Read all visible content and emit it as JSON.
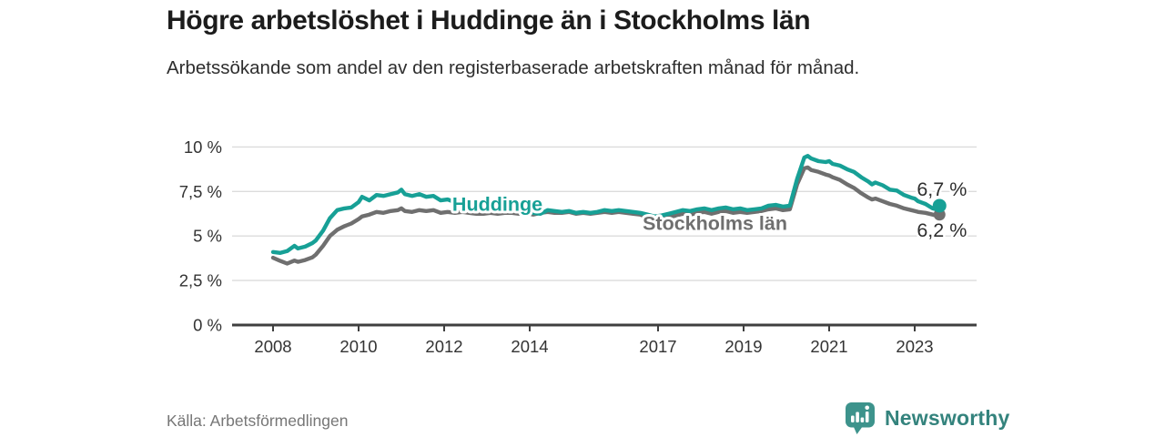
{
  "header": {
    "title": "Högre arbetslöshet i Huddinge än i Stockholms län",
    "subtitle": "Arbetssökande som andel av den registerbaserade arbetskraften månad för månad."
  },
  "footer": {
    "source": "Källa: Arbetsförmedlingen",
    "brand": "Newsworthy",
    "brand_icon": "newsworthy-logo-icon"
  },
  "colors": {
    "huddinge_line": "#17a096",
    "stockholm_line": "#6f6f6f",
    "grid": "#dcdcdc",
    "axis": "#3f3f3f",
    "tick_label": "#333333",
    "value_label": "#2e2e2e",
    "brand_teal": "#3d938c",
    "background": "#ffffff"
  },
  "chart_data": {
    "type": "line",
    "title": "Högre arbetslöshet i Huddinge än i Stockholms län",
    "xlabel": "",
    "ylabel": "Arbetssökande som andel av den registerbaserade arbetskraften",
    "unit": "%",
    "grid": true,
    "legend_position": "inline-labels",
    "xlim": [
      2007.05,
      2024.45
    ],
    "ylim": [
      0,
      10.5
    ],
    "x_ticks": [
      2008,
      2010,
      2012,
      2014,
      2017,
      2019,
      2021,
      2023
    ],
    "y_ticks": [
      {
        "value": 0,
        "label": "0 %"
      },
      {
        "value": 2.5,
        "label": "2,5 %"
      },
      {
        "value": 5,
        "label": "5 %"
      },
      {
        "value": 7.5,
        "label": "7,5 %"
      },
      {
        "value": 10,
        "label": "10 %"
      }
    ],
    "series": [
      {
        "name": "Huddinge",
        "color": "#17a096",
        "label_anchor": [
          2012.19,
          6.42
        ],
        "value_label": {
          "text": "6,7 %",
          "anchor": [
            2023.05,
            7.26
          ]
        },
        "end_value": 6.7,
        "points": [
          [
            2008.0,
            4.1
          ],
          [
            2008.17,
            4.05
          ],
          [
            2008.33,
            4.15
          ],
          [
            2008.5,
            4.45
          ],
          [
            2008.58,
            4.3
          ],
          [
            2008.75,
            4.4
          ],
          [
            2008.92,
            4.6
          ],
          [
            2009.0,
            4.75
          ],
          [
            2009.17,
            5.3
          ],
          [
            2009.33,
            6.0
          ],
          [
            2009.5,
            6.45
          ],
          [
            2009.67,
            6.55
          ],
          [
            2009.83,
            6.6
          ],
          [
            2010.0,
            6.9
          ],
          [
            2010.08,
            7.2
          ],
          [
            2010.25,
            7.0
          ],
          [
            2010.42,
            7.3
          ],
          [
            2010.58,
            7.25
          ],
          [
            2010.75,
            7.35
          ],
          [
            2010.92,
            7.45
          ],
          [
            2011.0,
            7.6
          ],
          [
            2011.08,
            7.35
          ],
          [
            2011.25,
            7.25
          ],
          [
            2011.42,
            7.35
          ],
          [
            2011.58,
            7.2
          ],
          [
            2011.75,
            7.25
          ],
          [
            2011.92,
            7.0
          ],
          [
            2012.08,
            7.05
          ],
          [
            2012.25,
            6.9
          ],
          [
            2012.42,
            6.95
          ],
          [
            2012.58,
            6.85
          ],
          [
            2012.75,
            6.8
          ],
          [
            2012.92,
            6.7
          ],
          [
            2013.08,
            6.6
          ],
          [
            2013.25,
            6.55
          ],
          [
            2013.42,
            6.5
          ],
          [
            2013.58,
            6.45
          ],
          [
            2013.75,
            6.5
          ],
          [
            2013.92,
            6.4
          ],
          [
            2014.08,
            6.3
          ],
          [
            2014.25,
            6.25
          ],
          [
            2014.42,
            6.45
          ],
          [
            2014.58,
            6.4
          ],
          [
            2014.75,
            6.35
          ],
          [
            2014.92,
            6.4
          ],
          [
            2015.08,
            6.3
          ],
          [
            2015.25,
            6.35
          ],
          [
            2015.42,
            6.3
          ],
          [
            2015.58,
            6.35
          ],
          [
            2015.75,
            6.45
          ],
          [
            2015.92,
            6.4
          ],
          [
            2016.08,
            6.45
          ],
          [
            2016.25,
            6.4
          ],
          [
            2016.42,
            6.35
          ],
          [
            2016.58,
            6.3
          ],
          [
            2016.75,
            6.2
          ],
          [
            2016.92,
            6.1
          ],
          [
            2017.08,
            6.15
          ],
          [
            2017.25,
            6.25
          ],
          [
            2017.42,
            6.35
          ],
          [
            2017.58,
            6.45
          ],
          [
            2017.75,
            6.4
          ],
          [
            2017.92,
            6.5
          ],
          [
            2018.08,
            6.55
          ],
          [
            2018.25,
            6.45
          ],
          [
            2018.42,
            6.55
          ],
          [
            2018.58,
            6.6
          ],
          [
            2018.75,
            6.5
          ],
          [
            2018.92,
            6.55
          ],
          [
            2019.08,
            6.45
          ],
          [
            2019.25,
            6.5
          ],
          [
            2019.42,
            6.55
          ],
          [
            2019.58,
            6.7
          ],
          [
            2019.75,
            6.75
          ],
          [
            2019.92,
            6.65
          ],
          [
            2020.08,
            6.7
          ],
          [
            2020.25,
            8.2
          ],
          [
            2020.42,
            9.4
          ],
          [
            2020.5,
            9.5
          ],
          [
            2020.58,
            9.35
          ],
          [
            2020.75,
            9.2
          ],
          [
            2020.92,
            9.15
          ],
          [
            2021.0,
            9.2
          ],
          [
            2021.08,
            9.05
          ],
          [
            2021.25,
            8.95
          ],
          [
            2021.42,
            8.75
          ],
          [
            2021.58,
            8.6
          ],
          [
            2021.75,
            8.3
          ],
          [
            2021.92,
            8.05
          ],
          [
            2022.0,
            7.9
          ],
          [
            2022.08,
            8.0
          ],
          [
            2022.25,
            7.85
          ],
          [
            2022.42,
            7.6
          ],
          [
            2022.58,
            7.55
          ],
          [
            2022.75,
            7.3
          ],
          [
            2022.92,
            7.15
          ],
          [
            2023.0,
            7.1
          ],
          [
            2023.08,
            6.95
          ],
          [
            2023.25,
            6.8
          ],
          [
            2023.42,
            6.55
          ],
          [
            2023.5,
            6.5
          ],
          [
            2023.58,
            6.7
          ]
        ]
      },
      {
        "name": "Stockholms län",
        "color": "#6f6f6f",
        "label_anchor": [
          2016.64,
          5.35
        ],
        "value_label": {
          "text": "6,2 %",
          "anchor": [
            2023.05,
            4.96
          ]
        },
        "end_value": 6.2,
        "points": [
          [
            2008.0,
            3.78
          ],
          [
            2008.17,
            3.6
          ],
          [
            2008.33,
            3.45
          ],
          [
            2008.5,
            3.62
          ],
          [
            2008.58,
            3.55
          ],
          [
            2008.75,
            3.65
          ],
          [
            2008.92,
            3.8
          ],
          [
            2009.0,
            3.95
          ],
          [
            2009.17,
            4.45
          ],
          [
            2009.33,
            5.0
          ],
          [
            2009.5,
            5.35
          ],
          [
            2009.67,
            5.55
          ],
          [
            2009.83,
            5.7
          ],
          [
            2010.0,
            5.95
          ],
          [
            2010.08,
            6.1
          ],
          [
            2010.25,
            6.2
          ],
          [
            2010.42,
            6.35
          ],
          [
            2010.58,
            6.3
          ],
          [
            2010.75,
            6.4
          ],
          [
            2010.92,
            6.45
          ],
          [
            2011.0,
            6.55
          ],
          [
            2011.08,
            6.4
          ],
          [
            2011.25,
            6.35
          ],
          [
            2011.42,
            6.45
          ],
          [
            2011.58,
            6.4
          ],
          [
            2011.75,
            6.45
          ],
          [
            2011.92,
            6.3
          ],
          [
            2012.08,
            6.35
          ],
          [
            2012.25,
            6.3
          ],
          [
            2012.42,
            6.35
          ],
          [
            2012.58,
            6.3
          ],
          [
            2012.75,
            6.25
          ],
          [
            2012.92,
            6.25
          ],
          [
            2013.08,
            6.3
          ],
          [
            2013.25,
            6.25
          ],
          [
            2013.42,
            6.3
          ],
          [
            2013.58,
            6.3
          ],
          [
            2013.75,
            6.25
          ],
          [
            2013.92,
            6.3
          ],
          [
            2014.08,
            6.2
          ],
          [
            2014.25,
            6.3
          ],
          [
            2014.42,
            6.35
          ],
          [
            2014.58,
            6.3
          ],
          [
            2014.75,
            6.3
          ],
          [
            2014.92,
            6.35
          ],
          [
            2015.08,
            6.25
          ],
          [
            2015.25,
            6.3
          ],
          [
            2015.42,
            6.25
          ],
          [
            2015.58,
            6.3
          ],
          [
            2015.75,
            6.35
          ],
          [
            2015.92,
            6.3
          ],
          [
            2016.08,
            6.35
          ],
          [
            2016.25,
            6.3
          ],
          [
            2016.42,
            6.25
          ],
          [
            2016.58,
            6.2
          ],
          [
            2016.75,
            6.05
          ],
          [
            2016.92,
            5.9
          ],
          [
            2017.08,
            5.95
          ],
          [
            2017.25,
            6.05
          ],
          [
            2017.42,
            6.15
          ],
          [
            2017.58,
            6.25
          ],
          [
            2017.75,
            6.2
          ],
          [
            2017.92,
            6.3
          ],
          [
            2018.08,
            6.35
          ],
          [
            2018.25,
            6.25
          ],
          [
            2018.42,
            6.35
          ],
          [
            2018.58,
            6.4
          ],
          [
            2018.75,
            6.3
          ],
          [
            2018.92,
            6.35
          ],
          [
            2019.08,
            6.3
          ],
          [
            2019.25,
            6.35
          ],
          [
            2019.42,
            6.4
          ],
          [
            2019.58,
            6.5
          ],
          [
            2019.75,
            6.55
          ],
          [
            2019.92,
            6.45
          ],
          [
            2020.08,
            6.5
          ],
          [
            2020.25,
            7.9
          ],
          [
            2020.42,
            8.8
          ],
          [
            2020.5,
            8.85
          ],
          [
            2020.58,
            8.7
          ],
          [
            2020.75,
            8.6
          ],
          [
            2020.92,
            8.45
          ],
          [
            2021.0,
            8.4
          ],
          [
            2021.08,
            8.3
          ],
          [
            2021.25,
            8.15
          ],
          [
            2021.42,
            7.9
          ],
          [
            2021.58,
            7.7
          ],
          [
            2021.75,
            7.4
          ],
          [
            2021.92,
            7.15
          ],
          [
            2022.0,
            7.05
          ],
          [
            2022.08,
            7.1
          ],
          [
            2022.25,
            6.95
          ],
          [
            2022.42,
            6.8
          ],
          [
            2022.58,
            6.7
          ],
          [
            2022.75,
            6.55
          ],
          [
            2022.92,
            6.45
          ],
          [
            2023.0,
            6.4
          ],
          [
            2023.08,
            6.35
          ],
          [
            2023.25,
            6.3
          ],
          [
            2023.42,
            6.2
          ],
          [
            2023.5,
            6.15
          ],
          [
            2023.58,
            6.2
          ]
        ]
      }
    ]
  }
}
